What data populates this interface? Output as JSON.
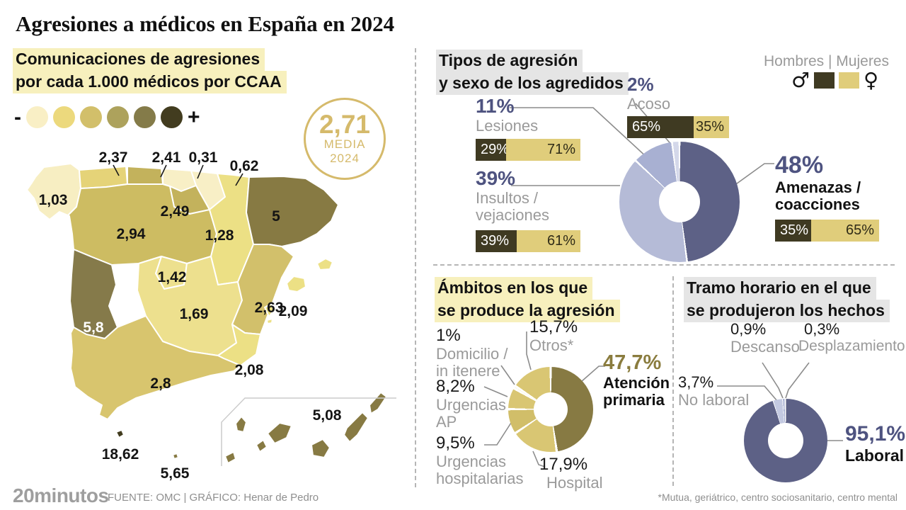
{
  "header": {
    "title": "Agresiones a médicos en España en 2024"
  },
  "colors": {
    "accent_blue": "#4e5380",
    "accent_olive": "#8a7c3e",
    "badge_gold": "#d5ba6b",
    "pie_dark_blue": "#5d6186",
    "pie_light_lavender": "#b5bbd7",
    "pie_mid_lavender": "#a8b0d2",
    "pie_pale_lavender": "#d4d8ea",
    "pie_dark_olive": "#877a43",
    "pie_yellow": "#d9c673"
  },
  "map_panel": {
    "subtitle_lines": [
      "Comunicaciones de agresiones",
      "por cada 1.000 médicos por CCAA"
    ],
    "scale": {
      "minus": "-",
      "plus": "+",
      "colors": [
        "#f9efc5",
        "#ecd97d",
        "#d2bf6a",
        "#ada25c",
        "#847b49",
        "#423c1f"
      ]
    },
    "badge": {
      "value": "2,71",
      "line1": "MEDIA",
      "line2": "2024"
    },
    "regions": [
      {
        "name": "Galicia",
        "value": "1,03",
        "color": "#f7eec2"
      },
      {
        "name": "Asturias",
        "value": "2,37",
        "color": "#e5d378"
      },
      {
        "name": "Cantabria",
        "value": "2,41",
        "color": "#c3b25c"
      },
      {
        "name": "País Vasco",
        "value": "0,31",
        "color": "#f8efc6"
      },
      {
        "name": "Navarra",
        "value": "0,62",
        "color": "#f8efc6"
      },
      {
        "name": "La Rioja",
        "value": "2,49",
        "color": "#c3b25c"
      },
      {
        "name": "Castilla y León",
        "value": "2,94",
        "color": "#cdbc62"
      },
      {
        "name": "Aragón",
        "value": "1,28",
        "color": "#ece085"
      },
      {
        "name": "Cataluña",
        "value": "5",
        "color": "#877a43"
      },
      {
        "name": "Madrid",
        "value": "1,42",
        "color": "#ede08e"
      },
      {
        "name": "Castilla-La Mancha",
        "value": "1,69",
        "color": "#ede08e"
      },
      {
        "name": "Comunidad Valenciana",
        "value": "2,63",
        "color": "#d2c06b"
      },
      {
        "name": "Baleares",
        "value": "2,09",
        "color": "#ece085"
      },
      {
        "name": "Extremadura",
        "value": "5,8",
        "color": "#857a4a"
      },
      {
        "name": "Andalucía",
        "value": "2,8",
        "color": "#d8c56e"
      },
      {
        "name": "Murcia",
        "value": "2,08",
        "color": "#ece085"
      },
      {
        "name": "Canarias",
        "value": "5,08",
        "color": "#877a43"
      },
      {
        "name": "Ceuta",
        "value": "18,62",
        "color": "#423c1f"
      },
      {
        "name": "Melilla",
        "value": "5,65",
        "color": "#877a43"
      }
    ]
  },
  "types_panel": {
    "title_lines": [
      "Tipos de agresión",
      "y sexo de los agredidos"
    ],
    "legend": {
      "label": "Hombres | Mujeres",
      "male_symbol": "♂",
      "female_symbol": "♀",
      "male_color": "#3f3a22",
      "female_color": "#e0cd7b"
    },
    "items": {
      "lesiones": {
        "pct": "11%",
        "label": "Lesiones",
        "men_label": "29%",
        "women_label": "71%",
        "split": [
          29,
          71
        ]
      },
      "acoso": {
        "pct": "2%",
        "label": "Acoso",
        "men_label": "65%",
        "women_label": "35%",
        "split": [
          65,
          35
        ]
      },
      "insultos": {
        "pct": "39%",
        "label": "Insultos / vejaciones",
        "men_label": "39%",
        "women_label": "61%",
        "split": [
          39,
          61
        ]
      },
      "amenazas": {
        "pct": "48%",
        "label": "Amenazas / coacciones",
        "men_label": "35%",
        "women_label": "65%",
        "split": [
          35,
          65
        ]
      }
    },
    "pie": [
      {
        "v": 48,
        "c": "#5d6186"
      },
      {
        "v": 39,
        "c": "#b5bbd7"
      },
      {
        "v": 11,
        "c": "#a8b0d2"
      },
      {
        "v": 2,
        "c": "#d4d8ea"
      }
    ]
  },
  "ambitos_panel": {
    "title_lines": [
      "Ámbitos en los que",
      "se produce la agresión"
    ],
    "items": {
      "otros": {
        "pct": "15,7%",
        "label": "Otros*"
      },
      "domicilio": {
        "pct": "1%",
        "label": "Domicilio / in itenere"
      },
      "urgencias_ap": {
        "pct": "8,2%",
        "label": "Urgencias AP"
      },
      "urgencias_hosp": {
        "pct": "9,5%",
        "label": "Urgencias hospitalarias"
      },
      "atencion": {
        "pct": "47,7%",
        "label": "Atención primaria"
      },
      "hospital": {
        "pct": "17,9%",
        "label": "Hospital"
      }
    },
    "pie": [
      {
        "v": 47.7,
        "c": "#877a43"
      },
      {
        "v": 17.9,
        "c": "#d9c673"
      },
      {
        "v": 9.5,
        "c": "#d1be69"
      },
      {
        "v": 8.2,
        "c": "#d9c673"
      },
      {
        "v": 1,
        "c": "#efe6bb"
      },
      {
        "v": 15.7,
        "c": "#d9c673"
      }
    ]
  },
  "tramo_panel": {
    "title_lines": [
      "Tramo horario en el que",
      "se produjeron los hechos"
    ],
    "items": {
      "descanso": {
        "pct": "0,9%",
        "label": "Descanso"
      },
      "desplazamiento": {
        "pct": "0,3%",
        "label": "Desplazamiento"
      },
      "no_laboral": {
        "pct": "3,7%",
        "label": "No laboral"
      },
      "laboral": {
        "pct": "95,1%",
        "label": "Laboral"
      }
    },
    "pie": [
      {
        "v": 95.1,
        "c": "#5d6186"
      },
      {
        "v": 3.7,
        "c": "#c3c9e1"
      },
      {
        "v": 0.9,
        "c": "#a8b0d2"
      },
      {
        "v": 0.3,
        "c": "#e4e7f2"
      }
    ]
  },
  "footer": {
    "logo": "20minutos",
    "source": "FUENTE: OMC  |  GRÁFICO: Henar de Pedro"
  },
  "footnote": "*Mutua, geriátrico, centro sociosanitario, centro mental",
  "chart_data": [
    {
      "type": "choropleth",
      "title": "Comunicaciones de agresiones por cada 1.000 médicos por CCAA",
      "mean": 2.71,
      "mean_label": "2,71 MEDIA 2024",
      "regions": [
        {
          "name": "Galicia",
          "value": 1.03
        },
        {
          "name": "Asturias",
          "value": 2.37
        },
        {
          "name": "Cantabria",
          "value": 2.41
        },
        {
          "name": "País Vasco",
          "value": 0.31
        },
        {
          "name": "Navarra",
          "value": 0.62
        },
        {
          "name": "La Rioja",
          "value": 2.49
        },
        {
          "name": "Castilla y León",
          "value": 2.94
        },
        {
          "name": "Aragón",
          "value": 1.28
        },
        {
          "name": "Cataluña",
          "value": 5
        },
        {
          "name": "Madrid",
          "value": 1.42
        },
        {
          "name": "Castilla-La Mancha",
          "value": 1.69
        },
        {
          "name": "Comunidad Valenciana",
          "value": 2.63
        },
        {
          "name": "Baleares",
          "value": 2.09
        },
        {
          "name": "Extremadura",
          "value": 5.8
        },
        {
          "name": "Andalucía",
          "value": 2.8
        },
        {
          "name": "Murcia",
          "value": 2.08
        },
        {
          "name": "Canarias",
          "value": 5.08
        },
        {
          "name": "Ceuta",
          "value": 18.62
        },
        {
          "name": "Melilla",
          "value": 5.65
        }
      ]
    },
    {
      "type": "pie",
      "title": "Tipos de agresión y sexo de los agredidos",
      "labels": [
        "Amenazas / coacciones",
        "Insultos / vejaciones",
        "Lesiones",
        "Acoso"
      ],
      "values": [
        48,
        39,
        11,
        2
      ],
      "legend": [
        "Hombres",
        "Mujeres"
      ],
      "gender_split_hombres_mujeres": {
        "Lesiones": [
          29,
          71
        ],
        "Acoso": [
          65,
          35
        ],
        "Insultos / vejaciones": [
          39,
          61
        ],
        "Amenazas / coacciones": [
          35,
          65
        ]
      }
    },
    {
      "type": "pie",
      "title": "Ámbitos en los que se produce la agresión",
      "labels": [
        "Atención primaria",
        "Hospital",
        "Urgencias hospitalarias",
        "Urgencias AP",
        "Domicilio / in itenere",
        "Otros*"
      ],
      "values": [
        47.7,
        17.9,
        9.5,
        8.2,
        1,
        15.7
      ]
    },
    {
      "type": "pie",
      "title": "Tramo horario en el que se produjeron los hechos",
      "labels": [
        "Laboral",
        "No laboral",
        "Descanso",
        "Desplazamiento"
      ],
      "values": [
        95.1,
        3.7,
        0.9,
        0.3
      ]
    }
  ]
}
